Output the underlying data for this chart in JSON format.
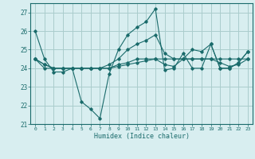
{
  "title": "",
  "xlabel": "Humidex (Indice chaleur)",
  "bg_color": "#d8eef0",
  "grid_color": "#aacccc",
  "line_color": "#1a6b6b",
  "xlim": [
    -0.5,
    23.5
  ],
  "ylim": [
    21,
    27.5
  ],
  "yticks": [
    21,
    22,
    23,
    24,
    25,
    26,
    27
  ],
  "xticks": [
    0,
    1,
    2,
    3,
    4,
    5,
    6,
    7,
    8,
    9,
    10,
    11,
    12,
    13,
    14,
    15,
    16,
    17,
    18,
    19,
    20,
    21,
    22,
    23
  ],
  "series": [
    [
      26.0,
      24.5,
      23.8,
      23.8,
      24.0,
      22.2,
      21.8,
      21.3,
      23.7,
      25.0,
      25.8,
      26.2,
      26.5,
      27.2,
      23.9,
      24.0,
      24.8,
      24.0,
      24.0,
      25.3,
      24.0,
      24.0,
      24.3,
      24.9
    ],
    [
      24.5,
      24.0,
      24.0,
      24.0,
      24.0,
      24.0,
      24.0,
      24.0,
      24.0,
      24.1,
      24.2,
      24.3,
      24.4,
      24.5,
      24.5,
      24.5,
      24.5,
      24.5,
      24.5,
      24.5,
      24.5,
      24.5,
      24.5,
      24.5
    ],
    [
      24.5,
      24.2,
      24.0,
      24.0,
      24.0,
      24.0,
      24.0,
      24.0,
      24.2,
      24.5,
      25.0,
      25.3,
      25.5,
      25.8,
      24.8,
      24.5,
      24.5,
      24.5,
      24.5,
      24.5,
      24.3,
      24.1,
      24.2,
      24.5
    ],
    [
      24.5,
      24.2,
      24.0,
      24.0,
      24.0,
      24.0,
      24.0,
      24.0,
      24.0,
      24.2,
      24.3,
      24.5,
      24.5,
      24.5,
      24.2,
      24.1,
      24.5,
      25.0,
      24.9,
      25.3,
      24.0,
      24.0,
      24.3,
      24.9
    ]
  ]
}
